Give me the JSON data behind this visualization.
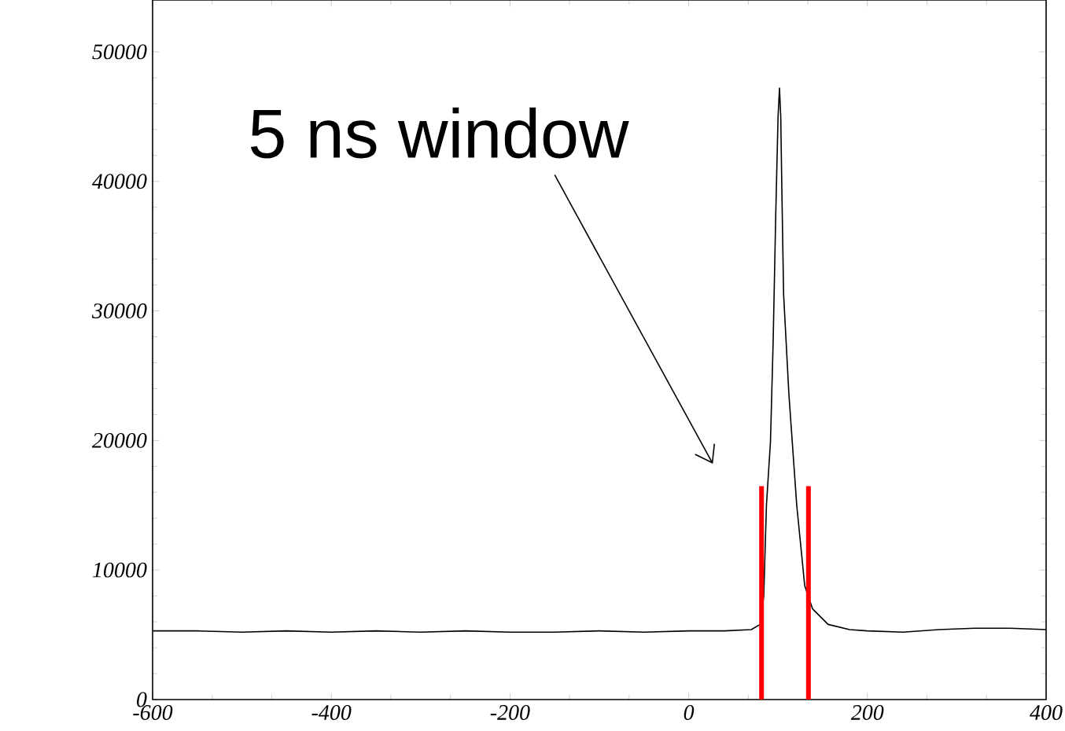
{
  "chart_data": {
    "type": "line",
    "color": "#000000",
    "x": [
      -600,
      -550,
      -500,
      -450,
      -400,
      -350,
      -300,
      -250,
      -200,
      -150,
      -100,
      -50,
      0,
      40,
      70,
      80,
      84,
      87,
      91.5,
      94.5,
      97.4,
      100,
      101.6,
      103,
      104.4,
      106.2,
      112.1,
      120.9,
      129.8,
      138.6,
      156,
      180,
      200,
      240,
      280,
      320,
      360,
      400
    ],
    "values": [
      5300,
      5300,
      5200,
      5300,
      5200,
      5300,
      5200,
      5300,
      5200,
      5200,
      5300,
      5200,
      5300,
      5300,
      5400,
      5800,
      8000,
      15000,
      19900,
      27600,
      37400,
      45000,
      47200,
      45000,
      38700,
      31300,
      23600,
      15000,
      8800,
      7000,
      5800,
      5400,
      5300,
      5200,
      5400,
      5500,
      5500,
      5400
    ],
    "xlim": [
      -600,
      400
    ],
    "ylim": [
      0,
      54000
    ],
    "xticks": [
      -600,
      -400,
      -200,
      0,
      200,
      400
    ],
    "yticks": [
      0,
      10000,
      20000,
      30000,
      40000,
      50000
    ],
    "ref_lines": [
      {
        "axis": "x",
        "value": 81.5,
        "color": "#ff0000"
      },
      {
        "axis": "x",
        "value": 134,
        "color": "#ff0000"
      }
    ],
    "annotations": [
      "5 ns window"
    ],
    "grid": false,
    "marker": "none",
    "line_style": "solid"
  }
}
